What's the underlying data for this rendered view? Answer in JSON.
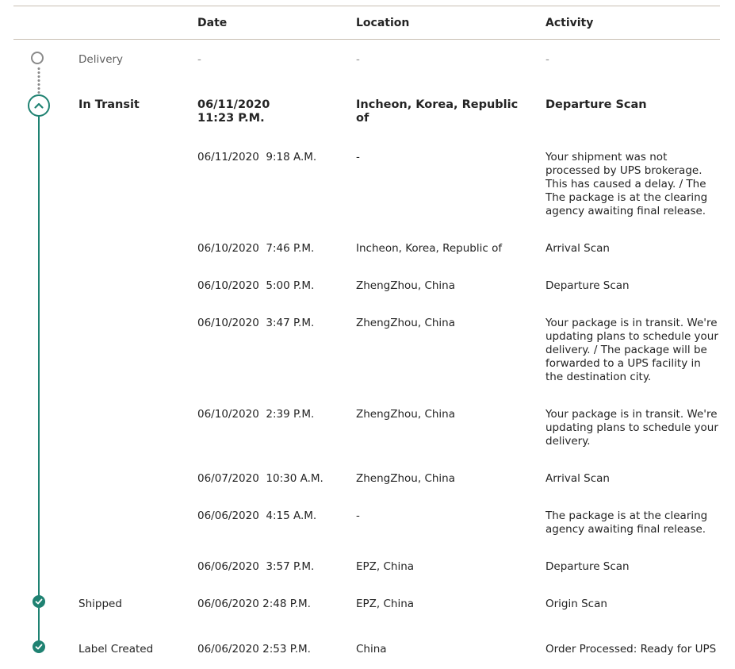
{
  "header": {
    "date": "Date",
    "location": "Location",
    "activity": "Activity"
  },
  "colors": {
    "accent": "#1f8272",
    "rule": "#c8beb2",
    "muted": "#8a8a8a"
  },
  "delivery": {
    "status": "Delivery",
    "date": "-",
    "location": "-",
    "activity": "-"
  },
  "in_transit": {
    "status": "In Transit",
    "date_line1": "06/11/2020",
    "date_line2": "11:23 P.M.",
    "location_line1": "Incheon, Korea, Republic",
    "location_line2": "of",
    "activity": "Departure Scan"
  },
  "events": [
    {
      "date": "06/11/2020  9:18 A.M.",
      "location": "-",
      "activity_lines": [
        "Your shipment was not",
        "processed by UPS brokerage.",
        "This has caused a delay. / The",
        "The package is at the clearing",
        "agency awaiting final release."
      ]
    },
    {
      "date": "06/10/2020  7:46 P.M.",
      "location": "Incheon, Korea, Republic of",
      "activity_lines": [
        "Arrival Scan"
      ]
    },
    {
      "date": "06/10/2020  5:00 P.M.",
      "location": "ZhengZhou, China",
      "activity_lines": [
        "Departure Scan"
      ]
    },
    {
      "date": "06/10/2020  3:47 P.M.",
      "location": "ZhengZhou, China",
      "activity_lines": [
        "Your package is in transit. We're",
        "updating plans to schedule your",
        "delivery. / The package will be",
        "forwarded to a UPS facility in",
        "the destination city."
      ]
    },
    {
      "date": "06/10/2020  2:39 P.M.",
      "location": "ZhengZhou, China",
      "activity_lines": [
        "Your package is in transit. We're",
        "updating plans to schedule your",
        "delivery."
      ]
    },
    {
      "date": "06/07/2020  10:30 A.M.",
      "location": "ZhengZhou, China",
      "activity_lines": [
        "Arrival Scan"
      ]
    },
    {
      "date": "06/06/2020  4:15 A.M.",
      "location": "-",
      "activity_lines": [
        "The package is at the clearing",
        "agency awaiting final release."
      ]
    },
    {
      "date": "06/06/2020  3:57 P.M.",
      "location": "EPZ, China",
      "activity_lines": [
        "Departure Scan"
      ]
    }
  ],
  "shipped": {
    "status": "Shipped",
    "date": "06/06/2020  2:48 P.M.",
    "location": "EPZ, China",
    "activity": "Origin Scan"
  },
  "label_created": {
    "status": "Label Created",
    "date": "06/06/2020  2:53 P.M.",
    "location": "China",
    "activity": "Order Processed: Ready for UPS"
  }
}
